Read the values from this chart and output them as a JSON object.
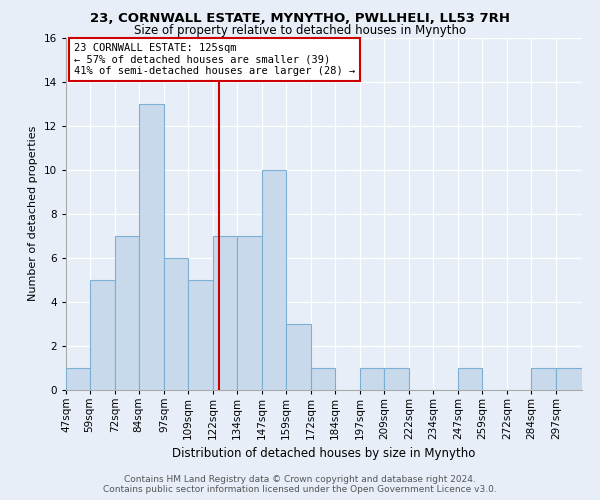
{
  "title1": "23, CORNWALL ESTATE, MYNYTHO, PWLLHELI, LL53 7RH",
  "title2": "Size of property relative to detached houses in Mynytho",
  "xlabel": "Distribution of detached houses by size in Mynytho",
  "ylabel": "Number of detached properties",
  "categories": [
    "47sqm",
    "59sqm",
    "72sqm",
    "84sqm",
    "97sqm",
    "109sqm",
    "122sqm",
    "134sqm",
    "147sqm",
    "159sqm",
    "172sqm",
    "184sqm",
    "197sqm",
    "209sqm",
    "222sqm",
    "234sqm",
    "247sqm",
    "259sqm",
    "272sqm",
    "284sqm",
    "297sqm"
  ],
  "values": [
    1,
    5,
    7,
    13,
    6,
    5,
    7,
    7,
    10,
    3,
    1,
    0,
    1,
    1,
    0,
    0,
    1,
    0,
    0,
    1,
    1
  ],
  "bar_color": "#c9d9ec",
  "bar_edge_color": "#7bafd4",
  "property_line_x": 125,
  "bin_edges": [
    47,
    59,
    72,
    84,
    97,
    109,
    122,
    134,
    147,
    159,
    172,
    184,
    197,
    209,
    222,
    234,
    247,
    259,
    272,
    284,
    297,
    310
  ],
  "annotation_title": "23 CORNWALL ESTATE: 125sqm",
  "annotation_line1": "← 57% of detached houses are smaller (39)",
  "annotation_line2": "41% of semi-detached houses are larger (28) →",
  "annotation_box_color": "#ffffff",
  "annotation_box_edge_color": "#cc0000",
  "vline_color": "#cc0000",
  "ylim": [
    0,
    16
  ],
  "yticks": [
    0,
    2,
    4,
    6,
    8,
    10,
    12,
    14,
    16
  ],
  "footer1": "Contains HM Land Registry data © Crown copyright and database right 2024.",
  "footer2": "Contains public sector information licensed under the Open Government Licence v3.0.",
  "bg_color": "#e8eef8",
  "title1_fontsize": 9.5,
  "title2_fontsize": 8.5,
  "xlabel_fontsize": 8.5,
  "ylabel_fontsize": 8,
  "tick_fontsize": 7.5,
  "annotation_fontsize": 7.5,
  "footer_fontsize": 6.5
}
